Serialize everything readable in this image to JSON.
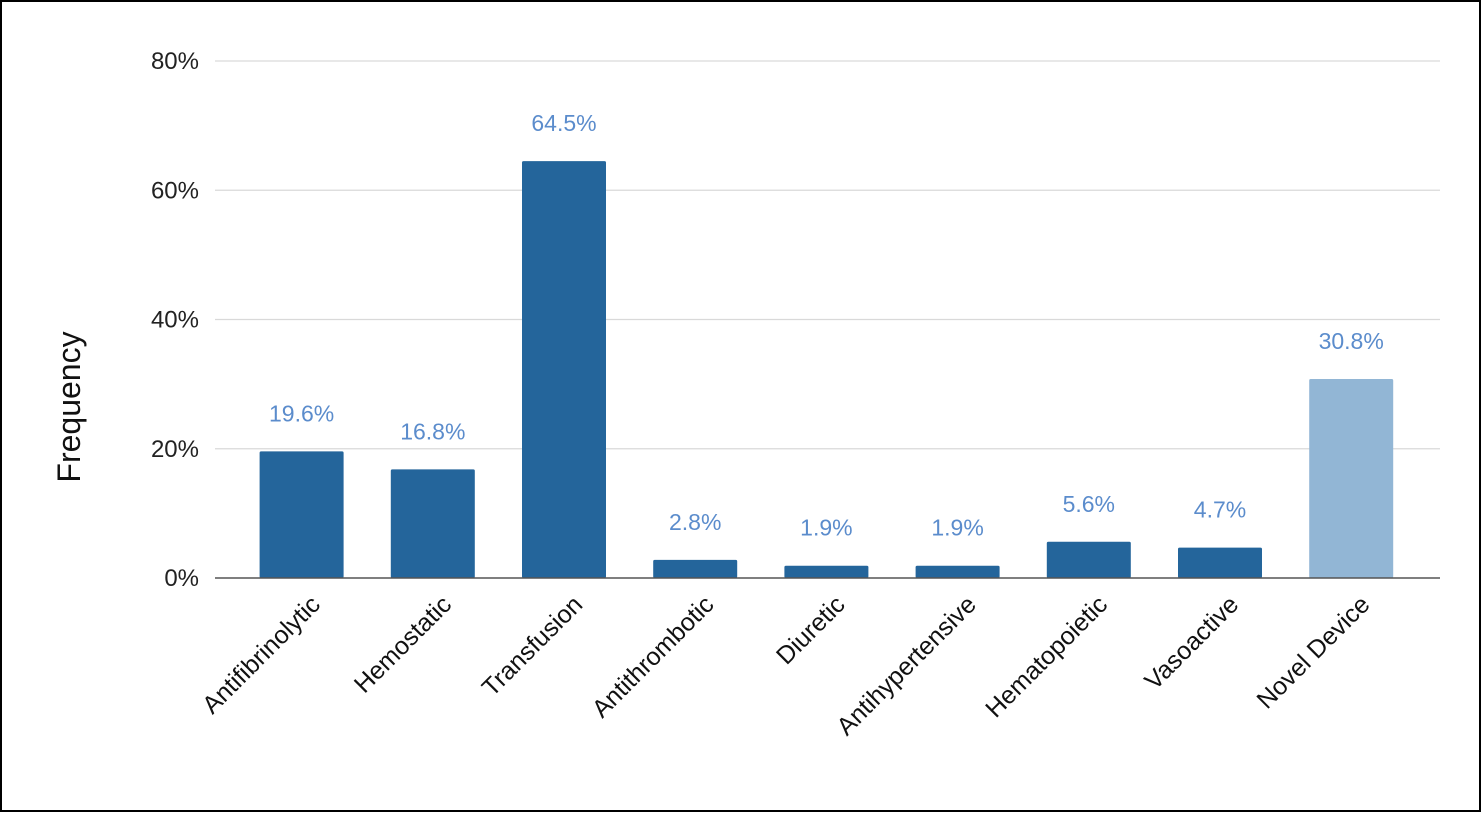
{
  "chart_data": {
    "type": "bar",
    "title": "",
    "xlabel": "",
    "ylabel": "Frequency",
    "ylim": [
      0,
      80
    ],
    "yticks": [
      0,
      20,
      40,
      60,
      80
    ],
    "ytick_labels": [
      "0%",
      "20%",
      "40%",
      "60%",
      "80%"
    ],
    "grid": true,
    "legend": "none",
    "categories": [
      "Antifibrinolytic",
      "Hemostatic",
      "Transfusion",
      "Antithrombotic",
      "Diuretic",
      "Antihypertensive",
      "Hematopoietic",
      "Vasoactive",
      "Novel Device"
    ],
    "values": [
      19.6,
      16.8,
      64.5,
      2.8,
      1.9,
      1.9,
      5.6,
      4.7,
      30.8
    ],
    "value_labels": [
      "19.6%",
      "16.8%",
      "64.5%",
      "2.8%",
      "1.9%",
      "1.9%",
      "5.6%",
      "4.7%",
      "30.8%"
    ],
    "highlight_index": 8,
    "colors": {
      "bar": "#24659b",
      "bar_highlight": "#92b6d5",
      "data_label": "#5b8ccc",
      "grid": "#d9d9d9",
      "baseline": "#555555"
    }
  }
}
